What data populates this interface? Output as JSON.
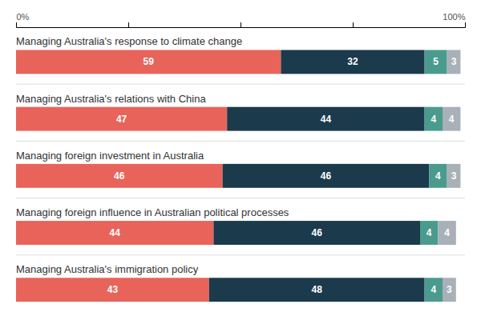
{
  "chart_data": {
    "type": "bar",
    "orientation": "horizontal",
    "stacked": true,
    "data_labels": true,
    "grid": false,
    "categories": [
      "Managing Australia's response to climate change",
      "Managing Australia's relations with China",
      "Managing foreign investment in Australia",
      "Managing foreign influence in Australian political processes",
      "Managing Australia's immigration policy"
    ],
    "series": [
      {
        "color": "#E8635A",
        "values": [
          59,
          47,
          46,
          44,
          43
        ]
      },
      {
        "color": "#1B3A4B",
        "values": [
          32,
          44,
          46,
          46,
          48
        ]
      },
      {
        "color": "#4A9B8E",
        "values": [
          5,
          4,
          4,
          4,
          4
        ]
      },
      {
        "color": "#A8B0B8",
        "values": [
          3,
          4,
          3,
          4,
          3
        ]
      }
    ],
    "xlim": [
      0,
      100
    ],
    "xticks": [
      {
        "value": 0,
        "label": "0%"
      },
      {
        "value": 25,
        "label": null
      },
      {
        "value": 50,
        "label": null
      },
      {
        "value": 75,
        "label": null
      },
      {
        "value": 100,
        "label": "100%"
      }
    ]
  }
}
